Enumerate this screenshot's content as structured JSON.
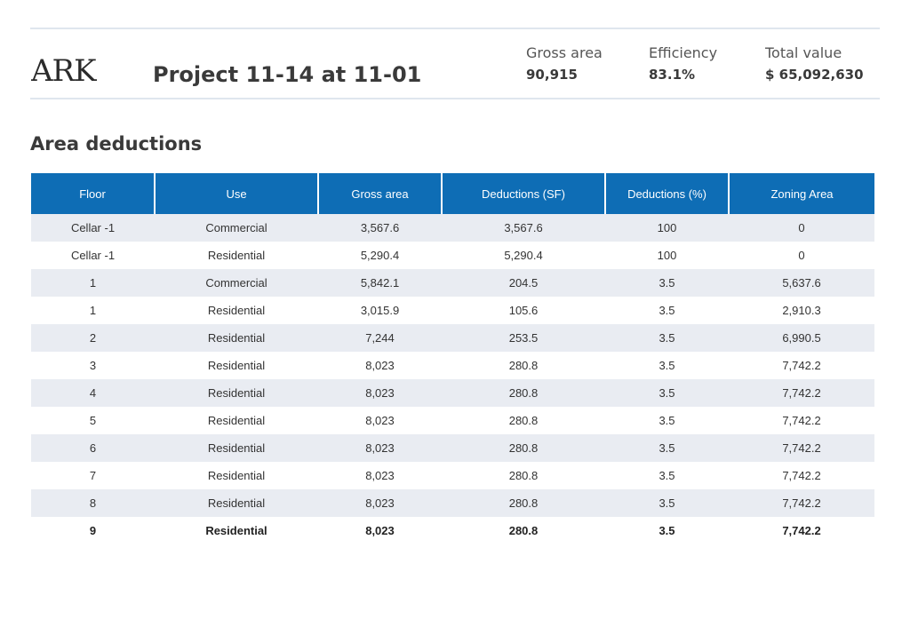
{
  "header": {
    "logo_text": "ARK",
    "project_title": "Project 11-14 at 11-01",
    "stats": [
      {
        "label": "Gross area",
        "value": "90,915"
      },
      {
        "label": "Efficiency",
        "value": "83.1%"
      },
      {
        "label": "Total value",
        "value": "$ 65,092,630"
      }
    ]
  },
  "section": {
    "title": "Area deductions"
  },
  "table": {
    "headers": [
      "Floor",
      "Use",
      "Gross area",
      "Deductions (SF)",
      "Deductions (%)",
      "Zoning Area"
    ],
    "rows": [
      [
        "Cellar -1",
        "Commercial",
        "3,567.6",
        "3,567.6",
        "100",
        "0"
      ],
      [
        "Cellar -1",
        "Residential",
        "5,290.4",
        "5,290.4",
        "100",
        "0"
      ],
      [
        "1",
        "Commercial",
        "5,842.1",
        "204.5",
        "3.5",
        "5,637.6"
      ],
      [
        "1",
        "Residential",
        "3,015.9",
        "105.6",
        "3.5",
        "2,910.3"
      ],
      [
        "2",
        "Residential",
        "7,244",
        "253.5",
        "3.5",
        "6,990.5"
      ],
      [
        "3",
        "Residential",
        "8,023",
        "280.8",
        "3.5",
        "7,742.2"
      ],
      [
        "4",
        "Residential",
        "8,023",
        "280.8",
        "3.5",
        "7,742.2"
      ],
      [
        "5",
        "Residential",
        "8,023",
        "280.8",
        "3.5",
        "7,742.2"
      ],
      [
        "6",
        "Residential",
        "8,023",
        "280.8",
        "3.5",
        "7,742.2"
      ],
      [
        "7",
        "Residential",
        "8,023",
        "280.8",
        "3.5",
        "7,742.2"
      ],
      [
        "8",
        "Residential",
        "8,023",
        "280.8",
        "3.5",
        "7,742.2"
      ]
    ],
    "total_row": [
      "9",
      "Residential",
      "8,023",
      "280.8",
      "3.5",
      "7,742.2"
    ]
  },
  "colors": {
    "header_bg": "#0e6db5",
    "stripe": "#e9ecf2",
    "text": "#3a3a3a",
    "rule": "#dfe6ee"
  }
}
